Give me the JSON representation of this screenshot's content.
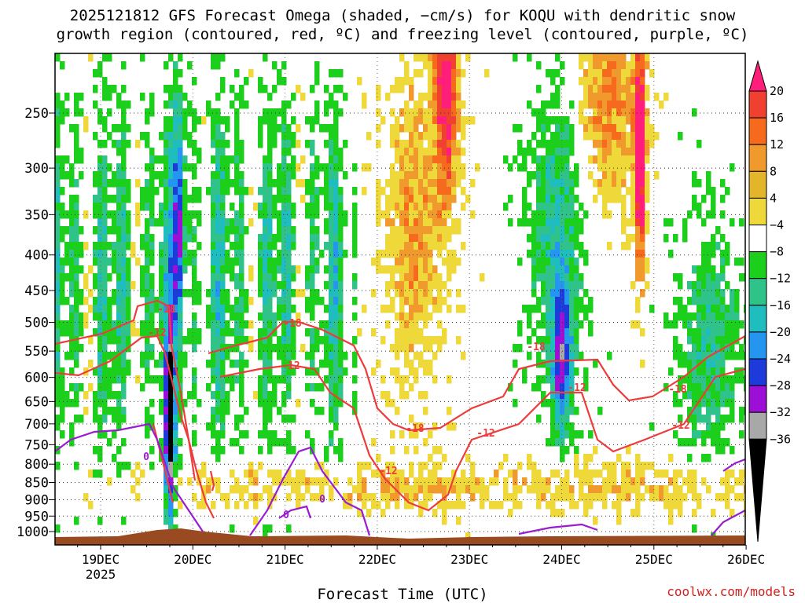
{
  "title_line1": "2025121812 GFS Forecast Omega (shaded, −cm/s) for KOQU with dendritic snow",
  "title_line2": "growth region (contoured, red, ºC) and freezing level (contoured, purple, ºC)",
  "credit": "coolwx.com/models",
  "chart_data": {
    "type": "heatmap",
    "xlabel": "Forecast Time (UTC)",
    "ylabel": "",
    "x_ticks": [
      "19DEC",
      "20DEC",
      "21DEC",
      "22DEC",
      "23DEC",
      "24DEC",
      "25DEC",
      "26DEC"
    ],
    "x_subtick": "2025",
    "y_ticks": [
      250,
      300,
      350,
      400,
      450,
      500,
      550,
      600,
      650,
      700,
      750,
      800,
      850,
      900,
      950,
      1000
    ],
    "y_scale": "log-pressure",
    "colorbar_labels": [
      "20",
      "16",
      "12",
      "8",
      "4",
      "−4",
      "−8",
      "−12",
      "−16",
      "−20",
      "−24",
      "−28",
      "−32",
      "−36"
    ],
    "colorbar_colors": [
      "#ff1f7a",
      "#ef4030",
      "#f56a1c",
      "#f09a2e",
      "#e2b52b",
      "#efd93a",
      "#ffffff",
      "#1ccf1c",
      "#2fc38a",
      "#1fbdbd",
      "#2496f0",
      "#1d3bdb",
      "#9b0fd6",
      "#a8a8a8",
      "#000000"
    ],
    "grid": true,
    "contours": {
      "dgz_red": {
        "labels": [
          "-18",
          "-12"
        ],
        "color": "#ee3b3b"
      },
      "freezing_purple": {
        "labels": [
          "0"
        ],
        "color": "#9b1bd1"
      }
    }
  }
}
